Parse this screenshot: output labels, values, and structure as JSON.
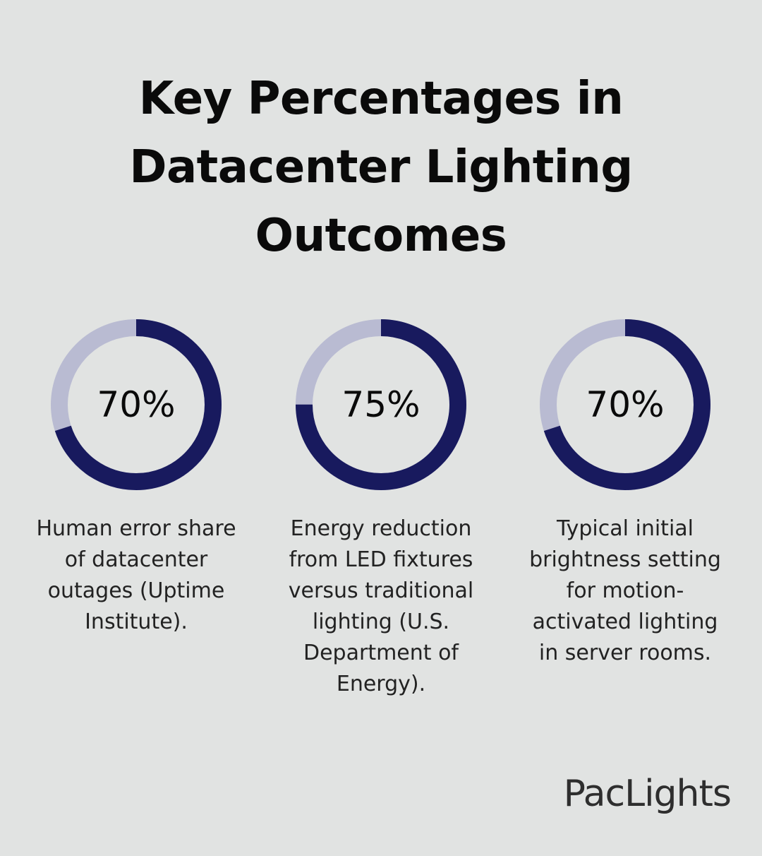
{
  "title": {
    "line1": "Key Percentages in",
    "line2": "Datacenter Lighting",
    "line3": "Outcomes"
  },
  "colors": {
    "background": "#e1e3e2",
    "ring_filled": "#181a5e",
    "ring_track": "#b9bbd2"
  },
  "chart_data": {
    "type": "donut",
    "items": [
      {
        "value": 70,
        "label": "70%",
        "caption": "Human error share of datacenter outages (Uptime Institute)."
      },
      {
        "value": 75,
        "label": "75%",
        "caption": "Energy reduction from LED fixtures versus traditional lighting (U.S. Department of Energy)."
      },
      {
        "value": 70,
        "label": "70%",
        "caption": "Typical initial brightness setting for motion-activated lighting in server rooms."
      }
    ]
  },
  "brand": {
    "logo_text": "PacLights"
  }
}
